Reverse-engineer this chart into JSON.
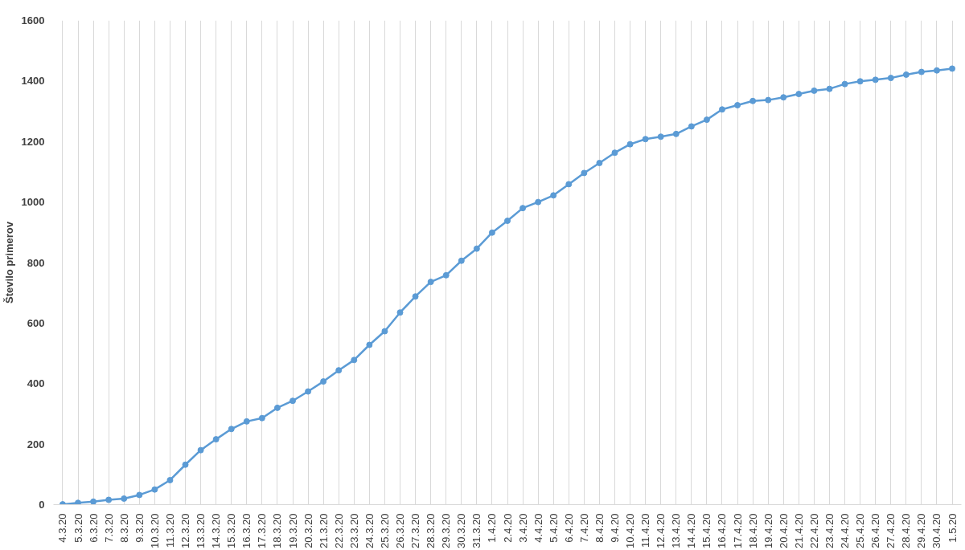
{
  "chart_data": {
    "type": "line",
    "ylabel": "Število primerov",
    "categories": [
      "4.3.20",
      "5.3.20",
      "6.3.20",
      "7.3.20",
      "8.3.20",
      "9.3.20",
      "10.3.20",
      "11.3.20",
      "12.3.20",
      "13.3.20",
      "14.3.20",
      "15.3.20",
      "16.3.20",
      "17.3.20",
      "18.3.20",
      "19.3.20",
      "20.3.20",
      "21.3.20",
      "22.3.20",
      "23.3.20",
      "24.3.20",
      "25.3.20",
      "26.3.20",
      "27.3.20",
      "28.3.20",
      "29.3.20",
      "30.3.20",
      "31.3.20",
      "1.4.20",
      "2.4.20",
      "3.4.20",
      "4.4.20",
      "5.4.20",
      "6.4.20",
      "7.4.20",
      "8.4.20",
      "9.4.20",
      "10.4.20",
      "11.4.20",
      "12.4.20",
      "13.4.20",
      "14.4.20",
      "15.4.20",
      "16.4.20",
      "17.4.20",
      "18.4.20",
      "19.4.20",
      "20.4.20",
      "21.4.20",
      "22.4.20",
      "23.4.20",
      "24.4.20",
      "25.4.20",
      "26.4.20",
      "27.4.20",
      "28.4.20",
      "29.4.20",
      "30.4.20",
      "1.5.20"
    ],
    "series": [
      {
        "color": "#5b9bd5",
        "values": [
          1,
          6,
          10,
          16,
          20,
          32,
          50,
          81,
          132,
          180,
          216,
          250,
          275,
          286,
          320,
          343,
          374,
          407,
          444,
          478,
          528,
          573,
          635,
          688,
          736,
          758,
          806,
          846,
          899,
          938,
          980,
          1000,
          1022,
          1059,
          1096,
          1129,
          1163,
          1191,
          1208,
          1216,
          1225,
          1250,
          1272,
          1306,
          1320,
          1334,
          1337,
          1346,
          1357,
          1368,
          1374,
          1390,
          1399,
          1404,
          1410,
          1421,
          1430,
          1435,
          1441
        ]
      }
    ],
    "ylim": [
      0,
      1600
    ],
    "yticks": [
      0,
      200,
      400,
      600,
      800,
      1000,
      1200,
      1400,
      1600
    ],
    "grid": "x",
    "marker": "circle",
    "line_style": "solid"
  }
}
